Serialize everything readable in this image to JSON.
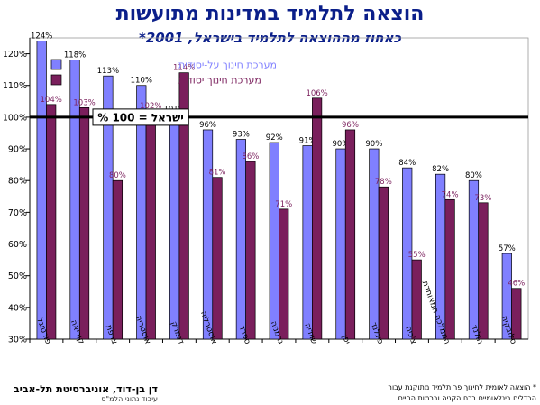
{
  "chart_data": {
    "type": "bar",
    "title": "הוצאה לתלמיד במדינות מתועשות",
    "subtitle": "כאחוז מההוצאה לתלמיד בישראל, 2001*",
    "categories": [
      "פורטוגל",
      "קוריאה",
      "צרפת",
      "אוסטריה",
      "דנמרק",
      "אוסטרליה",
      "ספרד",
      "גרמניה",
      "שוודיה",
      "יפן",
      "פינלנד",
      "צ'כיה",
      "הממלכה המאוחדת",
      "הולנד",
      "סלובקיה"
    ],
    "series": [
      {
        "name": "מערכת חינוך על-יסודית",
        "color": "#8080ff",
        "values": [
          124,
          118,
          113,
          110,
          101,
          96,
          93,
          92,
          91,
          90,
          90,
          84,
          82,
          80,
          57
        ],
        "labels": [
          "124%",
          "118%",
          "113%",
          "110%",
          "101%",
          "96%",
          "93%",
          "92%",
          "91%",
          "90%",
          "90%",
          "84%",
          "82%",
          "80%",
          "57%"
        ]
      },
      {
        "name": "מערכת חינוך יסודית",
        "color": "#7a1f5c",
        "values": [
          104,
          103,
          80,
          102,
          114,
          81,
          86,
          71,
          106,
          96,
          78,
          55,
          74,
          73,
          46
        ],
        "labels": [
          "104%",
          "103%",
          "80%",
          "102%",
          "114%",
          "81%",
          "86%",
          "71%",
          "106%",
          "96%",
          "78%",
          "55%",
          "74%",
          "73%",
          "46%"
        ]
      }
    ],
    "ylim": [
      30,
      125
    ],
    "yticks": [
      "30%",
      "40%",
      "50%",
      "60%",
      "70%",
      "80%",
      "90%",
      "100%",
      "110%",
      "120%"
    ],
    "reference": {
      "value": 100,
      "label": "ישראל = 100 %"
    },
    "legend_position": "top-left",
    "grid": false
  },
  "footer": {
    "author": "דן בן-דוד, אוניברסיטת תל-אביב",
    "processing": "עיבוד נתוני הלמ\"ס",
    "note_line1": "* הוצאה לאומית לחינוך פר תלמיד מתוקנת עבור",
    "note_line2": "הבדלים בינלאומיים בכח הקניה וברמות החיים."
  }
}
